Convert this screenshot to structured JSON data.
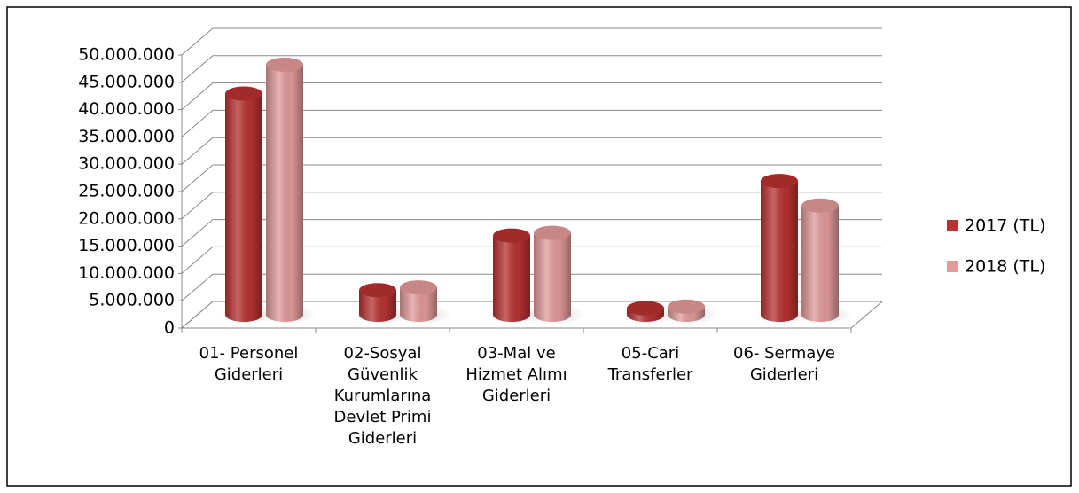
{
  "chart_data": {
    "type": "bar3d",
    "categories": [
      "01- Personel Giderleri",
      "02-Sosyal Güvenlik Kurumlarına Devlet Primi Giderleri",
      "03-Mal ve Hizmet Alımı Giderleri",
      "05-Cari Transferler",
      "06- Sermaye Giderleri"
    ],
    "series": [
      {
        "name": "2017 (TL)",
        "color": "#b83232",
        "values": [
          40500000,
          4500000,
          14500000,
          1200000,
          24500000
        ]
      },
      {
        "name": "2018 (TL)",
        "color": "#e39a9a",
        "values": [
          45800000,
          5000000,
          15000000,
          1500000,
          20000000
        ]
      }
    ],
    "ylim": [
      0,
      50000000
    ],
    "yticks": [
      0,
      {
        "value": 5000000,
        "label": "5.000.000"
      },
      {
        "value": 10000000,
        "label": "10.000.000"
      },
      {
        "value": 15000000,
        "label": "15.000.000"
      },
      {
        "value": 20000000,
        "label": "20.000.000"
      },
      {
        "value": 25000000,
        "label": "25.000.000"
      },
      {
        "value": 30000000,
        "label": "30.000.000"
      },
      {
        "value": 35000000,
        "label": "35.000.000"
      },
      {
        "value": 40000000,
        "label": "40.000.000"
      },
      {
        "value": 45000000,
        "label": "45.000.000"
      },
      {
        "value": 50000000,
        "label": "50.000.000"
      }
    ],
    "grid": true,
    "legend": "right"
  }
}
